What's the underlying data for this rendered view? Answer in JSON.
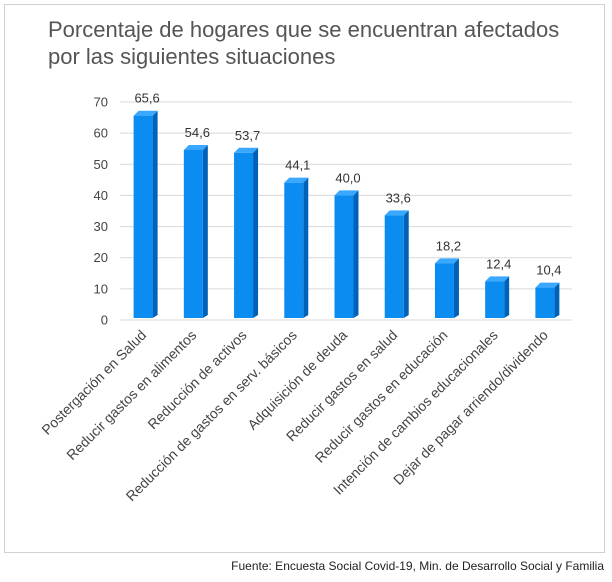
{
  "chart_data": {
    "type": "bar",
    "title": "Porcentaje de hogares que se encuentran afectados por las siguientes situaciones",
    "categories": [
      "Postergación en Salud",
      "Reducir gastos en alimentos",
      "Reducción de activos",
      "Reducción de gastos en serv. básicos",
      "Adquisición de deuda",
      "Reducir gastos en salud",
      "Reducir gastos en educación",
      "Intención de cambios educacionales",
      "Dejar de pagar arriendo/dividendo"
    ],
    "values": [
      65.6,
      54.6,
      53.7,
      44.1,
      40.0,
      33.6,
      18.2,
      12.4,
      10.4
    ],
    "data_labels": [
      "65,6",
      "54,6",
      "53,7",
      "44,1",
      "40,0",
      "33,6",
      "18,2",
      "12,4",
      "10,4"
    ],
    "yticks": [
      "0",
      "10",
      "20",
      "30",
      "40",
      "50",
      "60",
      "70"
    ],
    "ylim": [
      0,
      70
    ],
    "grid": true,
    "legend": "none",
    "colors": {
      "bar_front": "#0a8cf0",
      "bar_side": "#0061b8",
      "bar_top": "#3aa8ff",
      "grid": "#d9d9d9"
    }
  },
  "source": "Fuente: Encuesta Social Covid-19, Min. de Desarrollo Social y Familia"
}
